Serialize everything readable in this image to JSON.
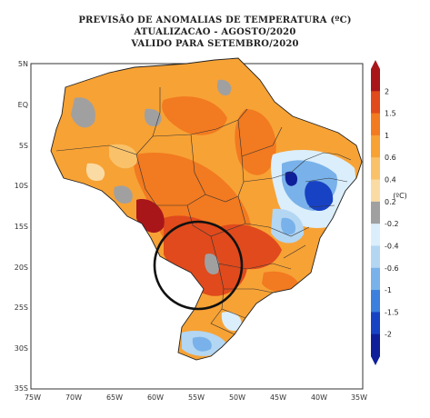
{
  "title": {
    "line1": "PREVISÃO DE ANOMALIAS DE TEMPERATURA (ºC)",
    "line2": "ATUALIZACAO - AGOSTO/2020",
    "line3": "VALIDO PARA SETEMBRO/2020"
  },
  "lat_ticks": [
    "5N",
    "EQ",
    "5S",
    "10S",
    "15S",
    "20S",
    "25S",
    "30S",
    "35S"
  ],
  "lon_ticks": [
    "75W",
    "70W",
    "65W",
    "60W",
    "55W",
    "50W",
    "45W",
    "40W",
    "35W"
  ],
  "colorbar": {
    "unit": "(ºC)",
    "levels": [
      "2",
      "1.5",
      "1",
      "0.6",
      "0.4",
      "0.2",
      "-0.2",
      "-0.4",
      "-0.6",
      "-1",
      "-1.5",
      "-2"
    ],
    "colors": [
      "#a8161a",
      "#e04a1c",
      "#f27a20",
      "#f7a235",
      "#f9c26a",
      "#fbdba4",
      "#a0a0a0",
      "#dbeefb",
      "#b3d6f3",
      "#79b2ea",
      "#3c7fdc",
      "#1842c4",
      "#0f1f9a"
    ]
  },
  "colors": {
    "anomaly_warm": "#f7a235",
    "anomaly_hot": "#e04a1c",
    "anomaly_cool": "#1842c4",
    "near_zero": "#a0a0a0",
    "highlight_circle": "#111111"
  }
}
